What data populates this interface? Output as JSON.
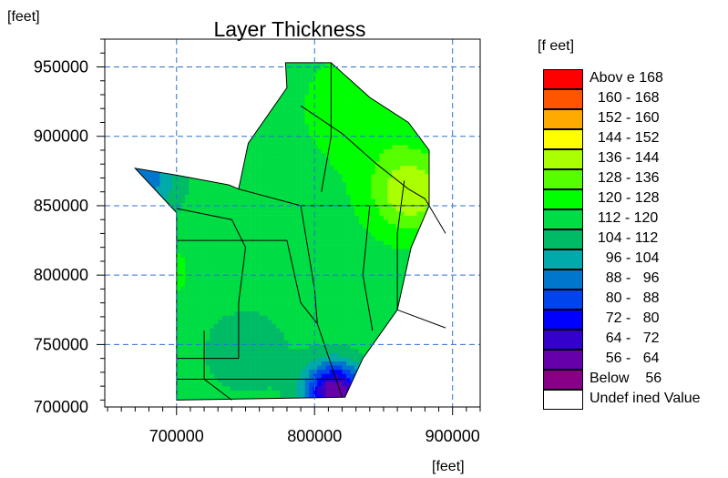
{
  "chart_data": {
    "type": "heatmap",
    "title": "Layer Thickness",
    "ylabel": "[feet]",
    "xlabel": "[feet]",
    "xlim": [
      648000,
      920000
    ],
    "ylim": [
      705000,
      970000
    ],
    "xticks": [
      700000,
      800000,
      900000
    ],
    "yticks": [
      700000,
      750000,
      800000,
      850000,
      900000,
      950000
    ],
    "tick_labels": {
      "x": [
        "700000",
        "800000",
        "900000"
      ],
      "y": [
        "700000",
        "750000",
        "800000",
        "850000",
        "900000",
        "950000"
      ]
    },
    "grid": true,
    "legend": {
      "title": "[f eet]",
      "placement": "right",
      "items": [
        {
          "label": "Abov e 168",
          "color": "#ff0000"
        },
        {
          "label": "  160 - 168",
          "color": "#ff5500"
        },
        {
          "label": "  152 - 160",
          "color": "#ffaa00"
        },
        {
          "label": "  144 - 152",
          "color": "#ffff00"
        },
        {
          "label": "  136 - 144",
          "color": "#aaff00"
        },
        {
          "label": "  128 - 136",
          "color": "#55ff00"
        },
        {
          "label": "  120 - 128",
          "color": "#00ff00"
        },
        {
          "label": "  112 - 120",
          "color": "#00dd44"
        },
        {
          "label": "  104 - 112",
          "color": "#00bb66"
        },
        {
          "label": "    96 - 104",
          "color": "#00aaaa"
        },
        {
          "label": "    88 -   96",
          "color": "#0077cc"
        },
        {
          "label": "    80 -   88",
          "color": "#0044ee"
        },
        {
          "label": "    72 -   80",
          "color": "#0000ff"
        },
        {
          "label": "    64 -   72",
          "color": "#3300cc"
        },
        {
          "label": "    56 -   64",
          "color": "#6600aa"
        },
        {
          "label": "Below    56",
          "color": "#880088"
        },
        {
          "label": "Undef ined Value",
          "color": "#ffffff"
        }
      ]
    },
    "domain_outline": [
      [
        700000,
        710000
      ],
      [
        700000,
        845000
      ],
      [
        670000,
        877000
      ],
      [
        700000,
        872000
      ],
      [
        738000,
        865000
      ],
      [
        745000,
        862000
      ],
      [
        752000,
        895000
      ],
      [
        780000,
        935000
      ],
      [
        779000,
        953000
      ],
      [
        812000,
        953000
      ],
      [
        840000,
        928000
      ],
      [
        868000,
        910000
      ],
      [
        883000,
        890000
      ],
      [
        883000,
        850000
      ],
      [
        870000,
        820000
      ],
      [
        860000,
        775000
      ],
      [
        835000,
        740000
      ],
      [
        822000,
        712000
      ],
      [
        700000,
        710000
      ]
    ],
    "value_field": {
      "base": 117,
      "features": [
        {
          "x": 683000,
          "y": 802000,
          "peak": 60,
          "sigma": 10000
        },
        {
          "x": 815000,
          "y": 716000,
          "peak": -60,
          "sigma": 15000
        },
        {
          "x": 672000,
          "y": 870000,
          "peak": -28,
          "sigma": 20000
        },
        {
          "x": 650000,
          "y": 830000,
          "peak": -24,
          "sigma": 15000
        },
        {
          "x": 870000,
          "y": 860000,
          "peak": 26,
          "sigma": 20000
        },
        {
          "x": 840000,
          "y": 920000,
          "peak": 10,
          "sigma": 30000
        },
        {
          "x": 750000,
          "y": 745000,
          "peak": -8,
          "sigma": 30000
        }
      ]
    },
    "overlay_polylines": [
      [
        [
          790000,
          922000
        ],
        [
          820000,
          902000
        ],
        [
          845000,
          880000
        ],
        [
          868000,
          862000
        ]
      ],
      [
        [
          868000,
          862000
        ],
        [
          880000,
          855000
        ],
        [
          895000,
          830000
        ]
      ],
      [
        [
          865000,
          868000
        ],
        [
          860000,
          830000
        ],
        [
          860000,
          775000
        ]
      ],
      [
        [
          860000,
          775000
        ],
        [
          895000,
          762000
        ]
      ],
      [
        [
          745000,
          862000
        ],
        [
          790000,
          850000
        ],
        [
          840000,
          850000
        ],
        [
          883000,
          850000
        ]
      ],
      [
        [
          790000,
          850000
        ],
        [
          800000,
          790000
        ],
        [
          802000,
          765000
        ]
      ],
      [
        [
          812000,
          953000
        ],
        [
          812000,
          900000
        ],
        [
          805000,
          860000
        ]
      ],
      [
        [
          840000,
          850000
        ],
        [
          835000,
          800000
        ],
        [
          842000,
          760000
        ]
      ],
      [
        [
          700000,
          848000
        ],
        [
          740000,
          840000
        ],
        [
          750000,
          820000
        ]
      ],
      [
        [
          700000,
          825000
        ],
        [
          750000,
          825000
        ],
        [
          780000,
          825000
        ]
      ],
      [
        [
          750000,
          820000
        ],
        [
          745000,
          780000
        ],
        [
          745000,
          740000
        ]
      ],
      [
        [
          780000,
          825000
        ],
        [
          790000,
          780000
        ],
        [
          802000,
          765000
        ],
        [
          820000,
          712000
        ]
      ],
      [
        [
          700000,
          740000
        ],
        [
          730000,
          740000
        ],
        [
          745000,
          740000
        ]
      ],
      [
        [
          720000,
          760000
        ],
        [
          720000,
          725000
        ],
        [
          740000,
          710000
        ]
      ],
      [
        [
          700000,
          725000
        ],
        [
          760000,
          725000
        ],
        [
          822000,
          725000
        ]
      ]
    ]
  }
}
